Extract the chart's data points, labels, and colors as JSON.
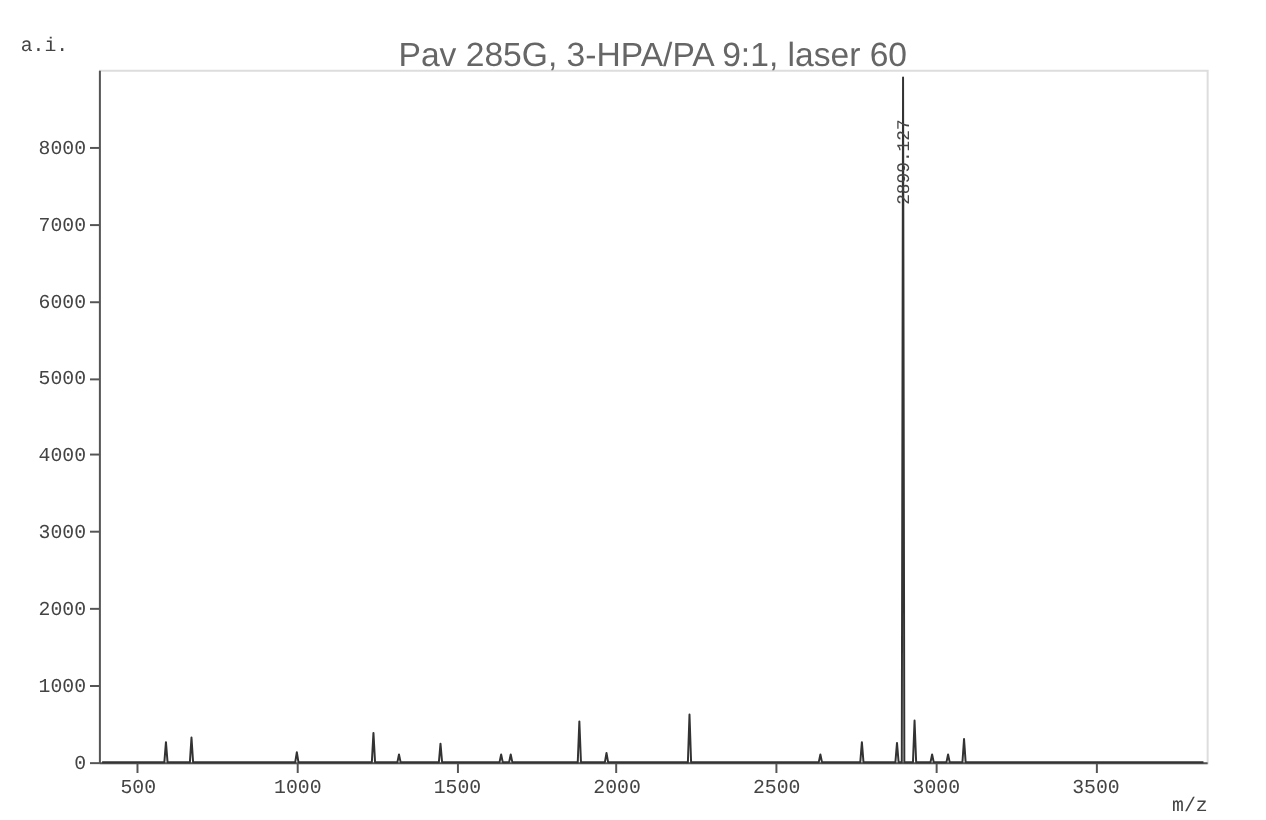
{
  "chart_data": {
    "type": "line",
    "title": "Pav 285G, 3-HPA/PA 9:1, laser 60",
    "xlabel": "m/z",
    "ylabel": "a.i.",
    "x": [
      390,
      585,
      590,
      595,
      665,
      670,
      675,
      995,
      1000,
      1005,
      1235,
      1240,
      1245,
      1315,
      1320,
      1325,
      1445,
      1450,
      1455,
      1635,
      1640,
      1645,
      1665,
      1670,
      1675,
      1880,
      1885,
      1890,
      1965,
      1970,
      1975,
      2225,
      2230,
      2235,
      2635,
      2640,
      2645,
      2765,
      2770,
      2775,
      2875,
      2880,
      2885,
      2895,
      2899,
      2903,
      2930,
      2935,
      2940,
      2985,
      2990,
      2995,
      3035,
      3040,
      3045,
      3085,
      3090,
      3095,
      3840
    ],
    "series": [
      {
        "color": "#333333",
        "values": [
          0,
          0,
          260,
          0,
          0,
          320,
          0,
          0,
          130,
          0,
          0,
          380,
          0,
          0,
          100,
          0,
          0,
          240,
          0,
          0,
          100,
          0,
          0,
          100,
          0,
          0,
          530,
          0,
          0,
          120,
          0,
          0,
          620,
          0,
          0,
          100,
          0,
          0,
          260,
          0,
          0,
          250,
          0,
          0,
          8900,
          0,
          0,
          540,
          0,
          0,
          100,
          0,
          0,
          100,
          0,
          0,
          300,
          0,
          0
        ]
      }
    ],
    "xlim": [
      380,
      3850
    ],
    "xticks": [
      500,
      1000,
      1500,
      2000,
      2500,
      3000,
      3500
    ],
    "ylim": [
      0,
      9000
    ],
    "yticks": [
      0,
      1000,
      2000,
      3000,
      4000,
      5000,
      6000,
      7000,
      8000
    ],
    "annotations": [
      {
        "text": "2899.127",
        "x": 2899,
        "y": 7800
      }
    ],
    "grid": false,
    "marker": "none",
    "line_style": "solid"
  }
}
